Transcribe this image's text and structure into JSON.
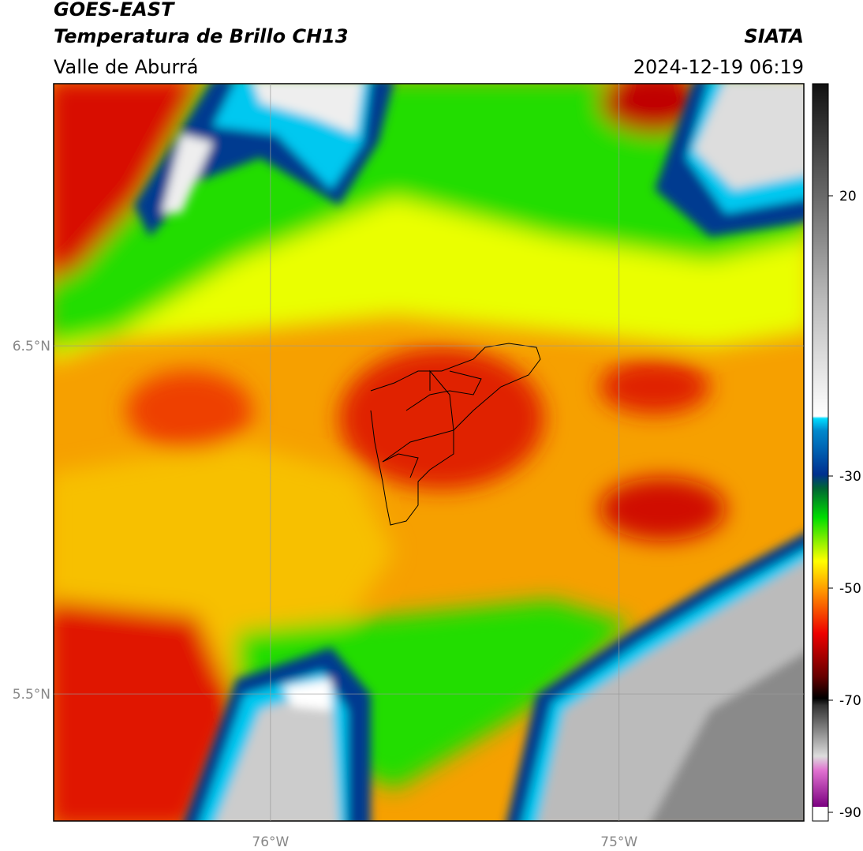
{
  "header": {
    "title": "GOES-EAST",
    "subtitle": "Temperatura de Brillo CH13",
    "region": "Valle de Aburrá",
    "source": "SIATA",
    "datetime": "2024-12-19 06:19"
  },
  "map": {
    "lat_range": [
      5.135,
      7.253
    ],
    "lon_range": [
      -76.622,
      -74.47
    ],
    "lat_ticks": [
      {
        "value": 6.5,
        "label": "6.5°N"
      },
      {
        "value": 5.5,
        "label": "5.5°N"
      }
    ],
    "lon_ticks": [
      {
        "value": -76,
        "label": "76°W"
      },
      {
        "value": -75,
        "label": "75°W"
      }
    ]
  },
  "colorbar": {
    "range": [
      -90,
      40
    ],
    "ticks": [
      20,
      -30,
      -50,
      -70,
      -90
    ]
  }
}
